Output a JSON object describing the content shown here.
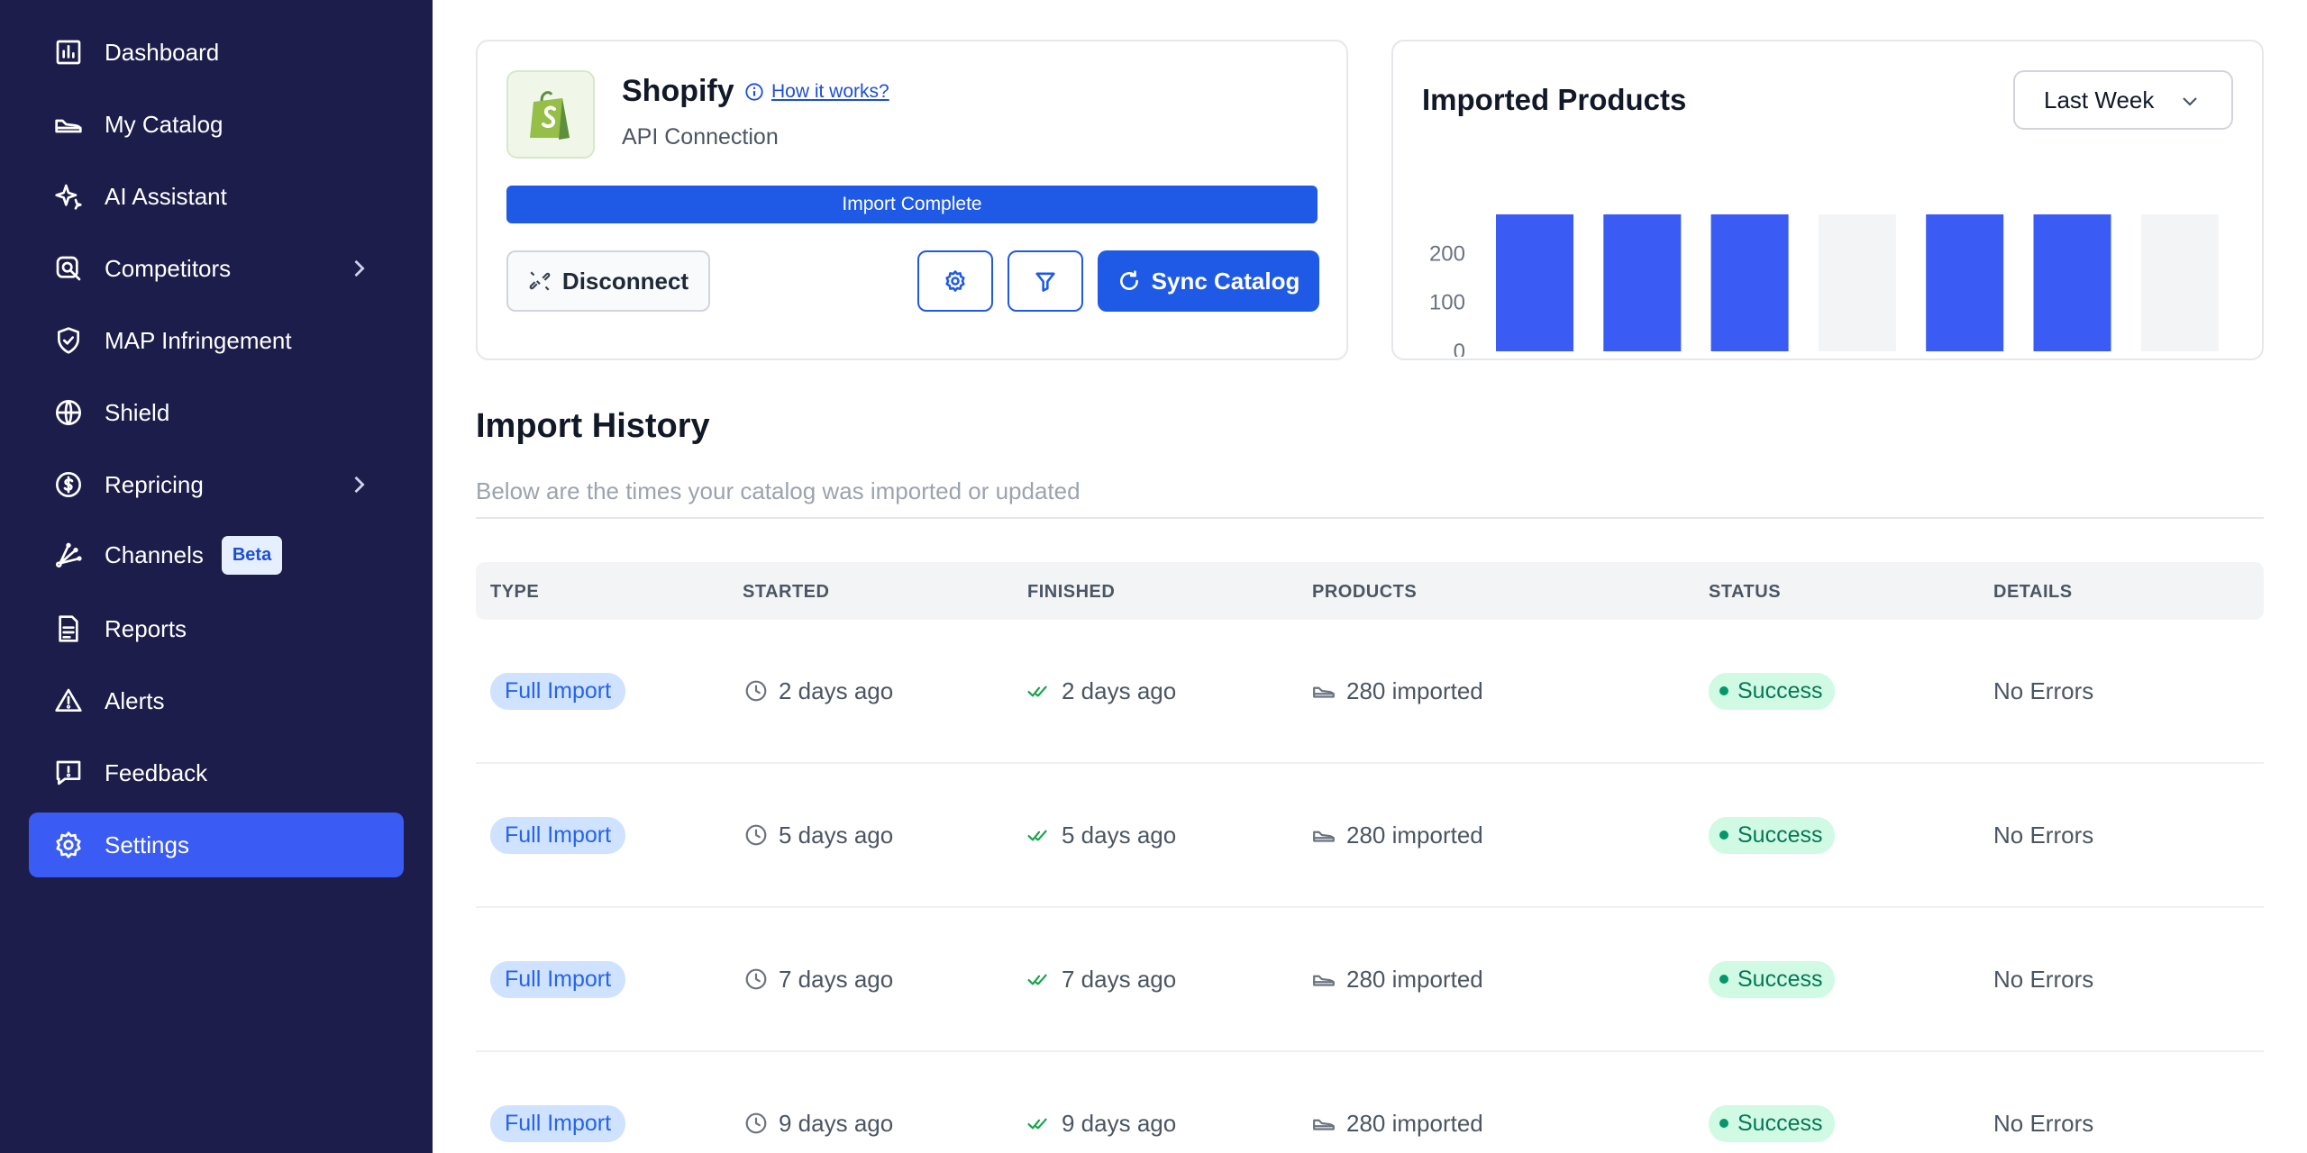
{
  "sidebar": {
    "items": [
      {
        "label": "Dashboard",
        "icon": "dashboard-icon"
      },
      {
        "label": "My Catalog",
        "icon": "shoe-icon"
      },
      {
        "label": "AI Assistant",
        "icon": "sparkle-icon"
      },
      {
        "label": "Competitors",
        "icon": "search-icon",
        "has_chevron": true
      },
      {
        "label": "MAP Infringement",
        "icon": "shield-check-icon"
      },
      {
        "label": "Shield",
        "icon": "globe-icon"
      },
      {
        "label": "Repricing",
        "icon": "dollar-icon",
        "has_chevron": true
      },
      {
        "label": "Channels",
        "icon": "channels-icon",
        "badge": "Beta"
      },
      {
        "label": "Reports",
        "icon": "document-icon"
      },
      {
        "label": "Alerts",
        "icon": "warning-icon"
      },
      {
        "label": "Feedback",
        "icon": "feedback-icon"
      },
      {
        "label": "Settings",
        "icon": "gear-icon",
        "active": true
      }
    ]
  },
  "connection": {
    "title": "Shopify",
    "how_link": "How it works?",
    "subtitle": "API Connection",
    "progress_label": "Import Complete",
    "progress_fraction": 1.0,
    "disconnect_label": "Disconnect",
    "sync_label": "Sync Catalog"
  },
  "products_card": {
    "title": "Imported Products",
    "range": "Last Week"
  },
  "chart_data": {
    "type": "bar",
    "title": "Imported Products",
    "categories": [
      "",
      "",
      "",
      "",
      "",
      "",
      ""
    ],
    "values": [
      280,
      280,
      280,
      0,
      280,
      280,
      0
    ],
    "yticks": [
      "200",
      "100",
      "0"
    ],
    "ylim": [
      0,
      280
    ],
    "bar_color": "#3a5cf5",
    "empty_color": "#f3f4f6"
  },
  "history": {
    "title": "Import History",
    "subtitle": "Below are the times your catalog was imported or updated",
    "columns": [
      "TYPE",
      "STARTED",
      "FINISHED",
      "PRODUCTS",
      "STATUS",
      "DETAILS"
    ],
    "rows": [
      {
        "type": "Full Import",
        "started": "2 days ago",
        "finished": "2 days ago",
        "products": "280 imported",
        "status": "Success",
        "details": "No Errors"
      },
      {
        "type": "Full Import",
        "started": "5 days ago",
        "finished": "5 days ago",
        "products": "280 imported",
        "status": "Success",
        "details": "No Errors"
      },
      {
        "type": "Full Import",
        "started": "7 days ago",
        "finished": "7 days ago",
        "products": "280 imported",
        "status": "Success",
        "details": "No Errors"
      },
      {
        "type": "Full Import",
        "started": "9 days ago",
        "finished": "9 days ago",
        "products": "280 imported",
        "status": "Success",
        "details": "No Errors"
      }
    ]
  },
  "colors": {
    "sidebar_bg": "#1c1d4b",
    "accent": "#3a5cf5",
    "primary_button": "#1f5ae6",
    "success": "#047857"
  }
}
